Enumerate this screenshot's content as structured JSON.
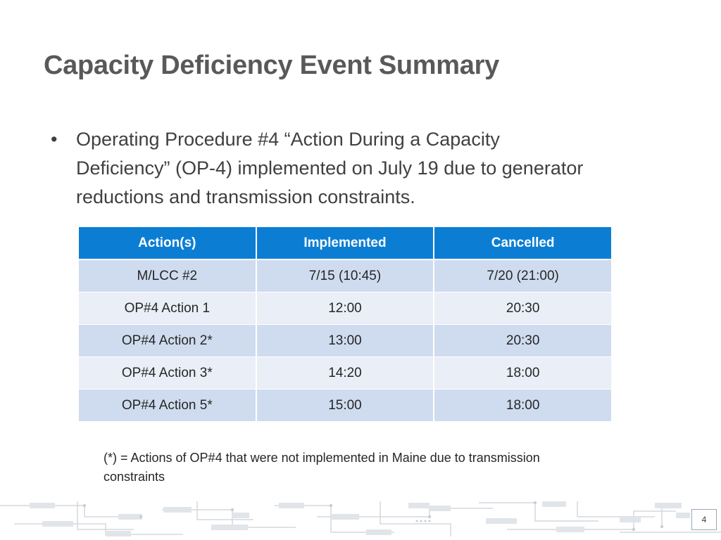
{
  "slide": {
    "title": "Capacity Deficiency Event Summary",
    "bullets": [
      "Operating Procedure #4 “Action During a Capacity Deficiency” (OP-4) implemented on July 19 due to generator reductions and transmission constraints."
    ],
    "bullet_symbol": "•",
    "table": {
      "headers": [
        "Action(s)",
        "Implemented",
        "Cancelled"
      ],
      "rows": [
        [
          "M/LCC #2",
          "7/15 (10:45)",
          "7/20 (21:00)"
        ],
        [
          "OP#4 Action 1",
          "12:00",
          "20:30"
        ],
        [
          "OP#4 Action 2*",
          "13:00",
          "20:30"
        ],
        [
          "OP#4 Action 3*",
          "14:20",
          "18:00"
        ],
        [
          "OP#4 Action 5*",
          "15:00",
          "18:00"
        ]
      ]
    },
    "footnote": "(*) = Actions of OP#4 that were not implemented in Maine due to transmission constraints",
    "page_number": "4",
    "colors": {
      "header_fill": "#0b7ed4",
      "row_band_dark": "#cfdcef",
      "row_band_light": "#e9eef7",
      "title_text": "#595959"
    }
  }
}
